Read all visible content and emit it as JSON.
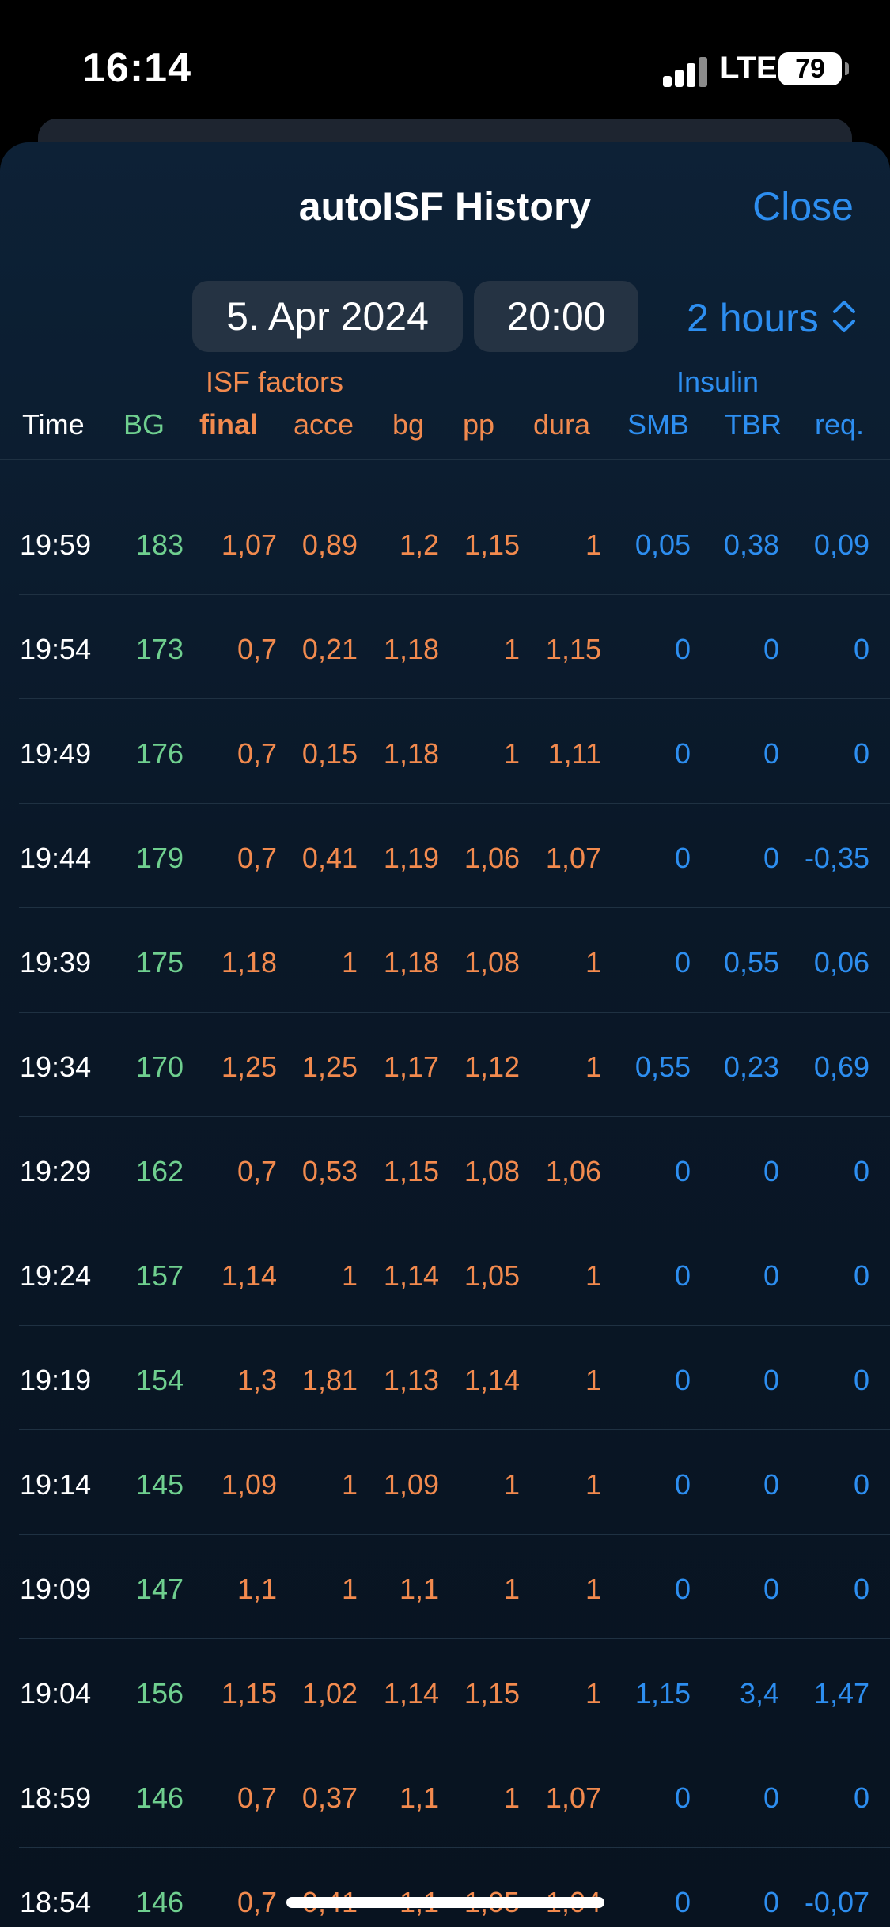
{
  "status": {
    "time": "16:14",
    "network": "LTE",
    "battery": "79"
  },
  "header": {
    "title": "autoISF History",
    "close_label": "Close"
  },
  "controls": {
    "date": "5. Apr 2024",
    "time": "20:00",
    "range": "2 hours"
  },
  "table": {
    "group_isf": "ISF factors",
    "group_insulin": "Insulin",
    "headers": {
      "time": "Time",
      "bg": "BG",
      "final": "final",
      "acce": "acce",
      "bgf": "bg",
      "pp": "pp",
      "dura": "dura",
      "smb": "SMB",
      "tbr": "TBR",
      "req": "req."
    },
    "rows": [
      {
        "time": "19:59",
        "bg": "183",
        "final": "1,07",
        "acce": "0,89",
        "bgf": "1,2",
        "pp": "1,15",
        "dura": "1",
        "smb": "0,05",
        "tbr": "0,38",
        "req": "0,09"
      },
      {
        "time": "19:54",
        "bg": "173",
        "final": "0,7",
        "acce": "0,21",
        "bgf": "1,18",
        "pp": "1",
        "dura": "1,15",
        "smb": "0",
        "tbr": "0",
        "req": "0"
      },
      {
        "time": "19:49",
        "bg": "176",
        "final": "0,7",
        "acce": "0,15",
        "bgf": "1,18",
        "pp": "1",
        "dura": "1,11",
        "smb": "0",
        "tbr": "0",
        "req": "0"
      },
      {
        "time": "19:44",
        "bg": "179",
        "final": "0,7",
        "acce": "0,41",
        "bgf": "1,19",
        "pp": "1,06",
        "dura": "1,07",
        "smb": "0",
        "tbr": "0",
        "req": "-0,35"
      },
      {
        "time": "19:39",
        "bg": "175",
        "final": "1,18",
        "acce": "1",
        "bgf": "1,18",
        "pp": "1,08",
        "dura": "1",
        "smb": "0",
        "tbr": "0,55",
        "req": "0,06"
      },
      {
        "time": "19:34",
        "bg": "170",
        "final": "1,25",
        "acce": "1,25",
        "bgf": "1,17",
        "pp": "1,12",
        "dura": "1",
        "smb": "0,55",
        "tbr": "0,23",
        "req": "0,69"
      },
      {
        "time": "19:29",
        "bg": "162",
        "final": "0,7",
        "acce": "0,53",
        "bgf": "1,15",
        "pp": "1,08",
        "dura": "1,06",
        "smb": "0",
        "tbr": "0",
        "req": "0"
      },
      {
        "time": "19:24",
        "bg": "157",
        "final": "1,14",
        "acce": "1",
        "bgf": "1,14",
        "pp": "1,05",
        "dura": "1",
        "smb": "0",
        "tbr": "0",
        "req": "0"
      },
      {
        "time": "19:19",
        "bg": "154",
        "final": "1,3",
        "acce": "1,81",
        "bgf": "1,13",
        "pp": "1,14",
        "dura": "1",
        "smb": "0",
        "tbr": "0",
        "req": "0"
      },
      {
        "time": "19:14",
        "bg": "145",
        "final": "1,09",
        "acce": "1",
        "bgf": "1,09",
        "pp": "1",
        "dura": "1",
        "smb": "0",
        "tbr": "0",
        "req": "0"
      },
      {
        "time": "19:09",
        "bg": "147",
        "final": "1,1",
        "acce": "1",
        "bgf": "1,1",
        "pp": "1",
        "dura": "1",
        "smb": "0",
        "tbr": "0",
        "req": "0"
      },
      {
        "time": "19:04",
        "bg": "156",
        "final": "1,15",
        "acce": "1,02",
        "bgf": "1,14",
        "pp": "1,15",
        "dura": "1",
        "smb": "1,15",
        "tbr": "3,4",
        "req": "1,47"
      },
      {
        "time": "18:59",
        "bg": "146",
        "final": "0,7",
        "acce": "0,37",
        "bgf": "1,1",
        "pp": "1",
        "dura": "1,07",
        "smb": "0",
        "tbr": "0",
        "req": "0"
      },
      {
        "time": "18:54",
        "bg": "146",
        "final": "0,7",
        "acce": "0,41",
        "bgf": "1,1",
        "pp": "1,05",
        "dura": "1,04",
        "smb": "0",
        "tbr": "0",
        "req": "-0,07"
      }
    ]
  },
  "colors": {
    "accent": "#2d8ef0",
    "isf": "#f28a4e",
    "bg": "#6fcf8f"
  }
}
